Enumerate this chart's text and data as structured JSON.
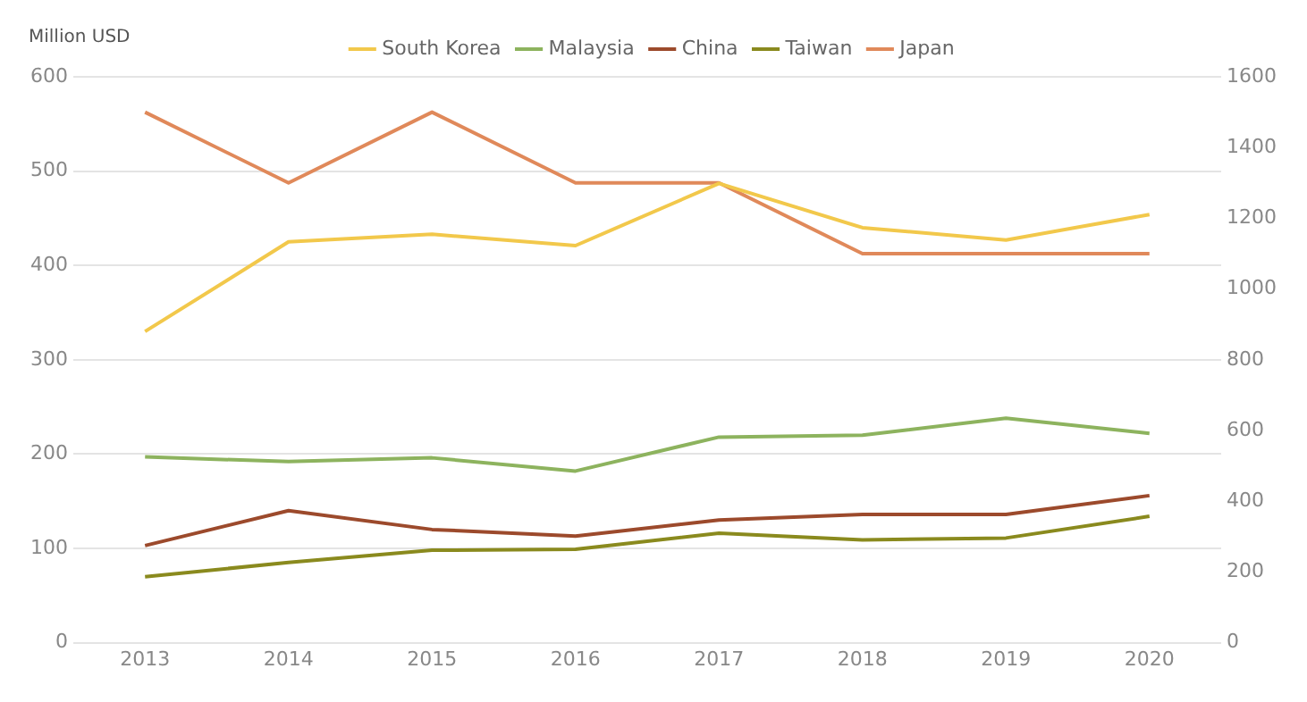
{
  "chart_data": {
    "type": "line",
    "ylabel": "Million USD",
    "categories": [
      "2013",
      "2014",
      "2015",
      "2016",
      "2017",
      "2018",
      "2019",
      "2020"
    ],
    "series": [
      {
        "name": "South Korea",
        "color": "#f2c84b",
        "values": [
          330,
          425,
          433,
          421,
          487,
          440,
          427,
          454
        ]
      },
      {
        "name": "Malaysia",
        "color": "#8db35e",
        "values": [
          197,
          192,
          196,
          182,
          218,
          220,
          238,
          222
        ]
      },
      {
        "name": "China",
        "color": "#9c4a2c",
        "values": [
          103,
          140,
          120,
          113,
          130,
          136,
          136,
          156
        ]
      },
      {
        "name": "Taiwan",
        "color": "#8a8a1e",
        "values": [
          70,
          85,
          98,
          99,
          116,
          109,
          111,
          134
        ]
      },
      {
        "name": "Japan",
        "color": "#e0895a",
        "axis": "y2",
        "values": [
          1500,
          1300,
          1500,
          1300,
          1300,
          1100,
          1100,
          1100
        ]
      }
    ],
    "ylim": [
      0,
      600
    ],
    "yticks": [
      0,
      100,
      200,
      300,
      400,
      500,
      600
    ],
    "y2lim": [
      0,
      1600
    ],
    "y2ticks": [
      0,
      200,
      400,
      600,
      800,
      1000,
      1200,
      1400,
      1600
    ],
    "grid": "y",
    "legend": "top",
    "marker": "none",
    "line_style": "solid"
  }
}
